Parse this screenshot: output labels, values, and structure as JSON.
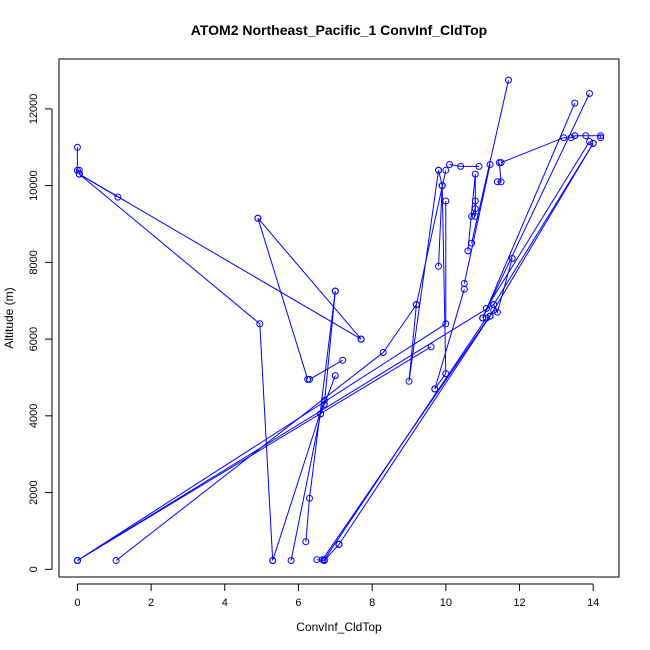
{
  "chart_data": {
    "type": "line",
    "title": "ATOM2 Northeast_Pacific_1 ConvInf_CldTop",
    "xlabel": "ConvInf_CldTop",
    "ylabel": "Altitude (m)",
    "xlim": [
      -0.5,
      14.7
    ],
    "ylim": [
      -200,
      13300
    ],
    "xticks": [
      0,
      2,
      4,
      6,
      8,
      10,
      12,
      14
    ],
    "yticks": [
      0,
      2000,
      4000,
      6000,
      8000,
      10000,
      12000
    ],
    "grid": false,
    "markers": "open-circle",
    "color": "#0000ff",
    "series": [
      {
        "x": [
          0,
          0,
          0.05
        ],
        "y": [
          11000,
          10400,
          10400
        ]
      },
      {
        "x": [
          0.05,
          1.1
        ],
        "y": [
          10300,
          9700
        ]
      },
      {
        "x": [
          0.05,
          4.95,
          5.3
        ],
        "y": [
          10300,
          6400,
          230
        ]
      },
      {
        "x": [
          0.05,
          7.7
        ],
        "y": [
          10300,
          6000
        ]
      },
      {
        "x": [
          4.9,
          7.7
        ],
        "y": [
          9150,
          6000
        ]
      },
      {
        "x": [
          4.9,
          6.25
        ],
        "y": [
          9150,
          4950
        ]
      },
      {
        "x": [
          6.3,
          7.2
        ],
        "y": [
          4950,
          5450
        ]
      },
      {
        "x": [
          7.0,
          6.7,
          7.0,
          6.6
        ],
        "y": [
          7250,
          4300,
          5050,
          4050
        ]
      },
      {
        "x": [
          7.0,
          6.3,
          6.2
        ],
        "y": [
          7250,
          1850,
          720
        ]
      },
      {
        "x": [
          5.3,
          6.7
        ],
        "y": [
          230,
          4400
        ]
      },
      {
        "x": [
          5.8,
          6.6
        ],
        "y": [
          230,
          4050
        ]
      },
      {
        "x": [
          6.5,
          6.7
        ],
        "y": [
          250,
          230
        ]
      },
      {
        "x": [
          6.7,
          7.1
        ],
        "y": [
          230,
          650
        ]
      },
      {
        "x": [
          0,
          11.3,
          11.4,
          11.8
        ],
        "y": [
          230,
          6900,
          6700,
          8100
        ]
      },
      {
        "x": [
          0,
          10.0,
          10.0
        ],
        "y": [
          230,
          6400,
          9600
        ]
      },
      {
        "x": [
          0,
          9.6
        ],
        "y": [
          230,
          5800
        ]
      },
      {
        "x": [
          1.05,
          8.3,
          9.2,
          10.0
        ],
        "y": [
          230,
          5650,
          6900,
          10400
        ]
      },
      {
        "x": [
          9.2,
          9.0,
          9.8
        ],
        "y": [
          6900,
          4900,
          10400
        ]
      },
      {
        "x": [
          9.8,
          9.9,
          9.8
        ],
        "y": [
          10400,
          10000,
          7900
        ]
      },
      {
        "x": [
          9.9,
          10.0,
          9.7
        ],
        "y": [
          10000,
          5100,
          4700
        ]
      },
      {
        "x": [
          9.7,
          10.5
        ],
        "y": [
          4700,
          7300
        ]
      },
      {
        "x": [
          10.1,
          10.4,
          10.9
        ],
        "y": [
          10550,
          10500,
          10500
        ]
      },
      {
        "x": [
          10.6,
          10.8,
          10.8,
          10.7
        ],
        "y": [
          8300,
          10300,
          9400,
          9200
        ]
      },
      {
        "x": [
          10.8,
          10.8
        ],
        "y": [
          9600,
          9200
        ]
      },
      {
        "x": [
          10.5,
          11.2
        ],
        "y": [
          7450,
          10550
        ]
      },
      {
        "x": [
          10.7,
          11.7
        ],
        "y": [
          8500,
          12750
        ]
      },
      {
        "x": [
          11.4,
          11.5,
          11.45
        ],
        "y": [
          10100,
          10100,
          10600
        ]
      },
      {
        "x": [
          11.5,
          13.2,
          13.4,
          13.5
        ],
        "y": [
          10600,
          11250,
          11250,
          11300
        ]
      },
      {
        "x": [
          13.5,
          13.8,
          14.2,
          14.2
        ],
        "y": [
          11300,
          11300,
          11300,
          11250
        ]
      },
      {
        "x": [
          11.0,
          13.5
        ],
        "y": [
          6550,
          12150
        ]
      },
      {
        "x": [
          11.0,
          13.9
        ],
        "y": [
          6550,
          12400
        ]
      },
      {
        "x": [
          11.2,
          14.0
        ],
        "y": [
          6600,
          11100
        ]
      },
      {
        "x": [
          11.1,
          13.9
        ],
        "y": [
          6800,
          11150
        ]
      },
      {
        "x": [
          6.65,
          11.3
        ],
        "y": [
          250,
          6750
        ]
      },
      {
        "x": [
          6.7,
          11.1
        ],
        "y": [
          250,
          6550
        ]
      },
      {
        "x": [
          7.1,
          11.2
        ],
        "y": [
          650,
          6600
        ]
      },
      {
        "x": [
          11.3,
          14.0
        ],
        "y": [
          6900,
          11100
        ]
      }
    ]
  }
}
